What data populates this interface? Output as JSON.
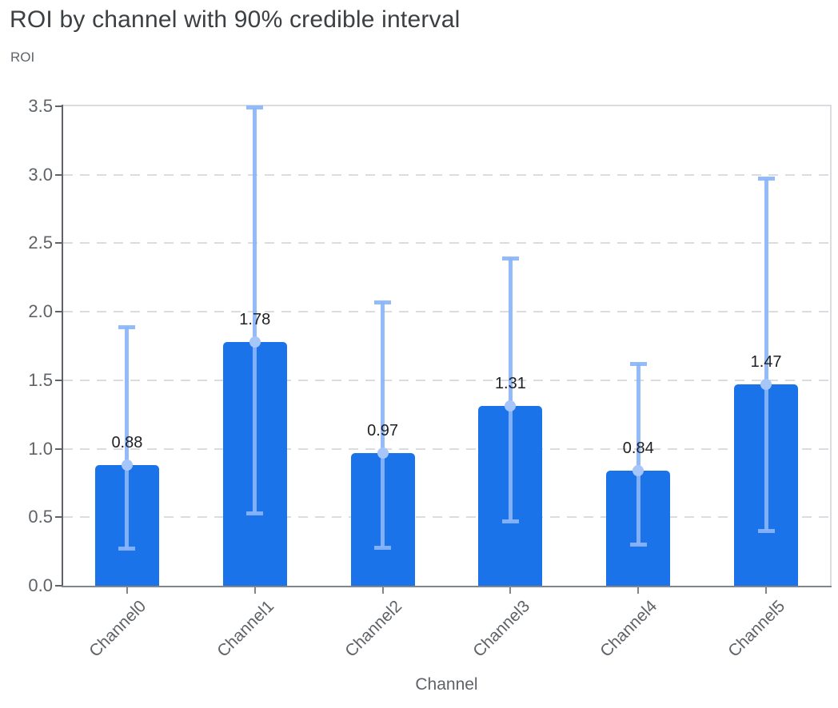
{
  "chart_data": {
    "type": "bar",
    "title": "ROI by channel with 90% credible interval",
    "subtitle": "ROI",
    "xlabel": "Channel",
    "ylabel": "ROI",
    "categories": [
      "Channel0",
      "Channel1",
      "Channel2",
      "Channel3",
      "Channel4",
      "Channel5"
    ],
    "series": [
      {
        "name": "ROI",
        "values": [
          0.88,
          1.78,
          0.97,
          1.31,
          0.84,
          1.47
        ]
      }
    ],
    "data_labels": [
      "0.88",
      "1.78",
      "0.97",
      "1.31",
      "0.84",
      "1.47"
    ],
    "error_bars": {
      "name": "90% credible interval",
      "lower": [
        0.27,
        0.53,
        0.28,
        0.47,
        0.3,
        0.4
      ],
      "upper": [
        1.89,
        3.49,
        2.07,
        2.39,
        1.62,
        2.97
      ]
    },
    "ylim": [
      0,
      3.5
    ],
    "ytick_labels": [
      "0.0",
      "0.5",
      "1.0",
      "1.5",
      "2.0",
      "2.5",
      "3.0",
      "3.5"
    ],
    "grid": {
      "horizontal": true,
      "style": "dashed"
    },
    "legend": "none",
    "colors": {
      "bar": "#1a73e8",
      "error_bar": "#8ab4f8",
      "error_dot": "#a6c5f9",
      "grid": "#dadce0",
      "axis_y": "#5f6368",
      "axis_x": "#80868b",
      "title_text": "#3c4043",
      "tick_text": "#5f6368",
      "value_label_text": "#202124"
    }
  }
}
